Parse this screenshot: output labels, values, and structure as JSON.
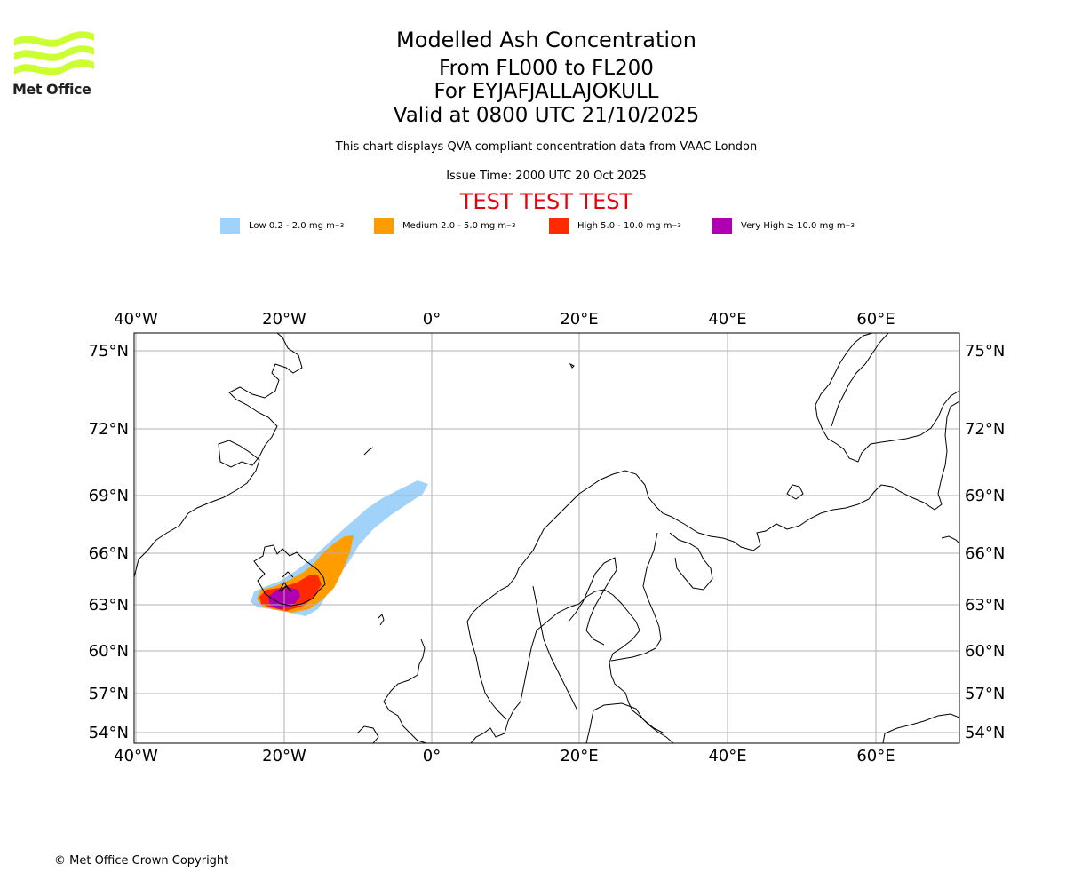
{
  "header": {
    "title": "Modelled Ash Concentration",
    "levels": "From FL000 to FL200",
    "volcano": "For EYJAFJALLAJOKULL",
    "valid": "Valid at 0800 UTC 21/10/2025",
    "description": "This chart displays QVA compliant concentration data from VAAC London",
    "issue": "Issue Time: 2000 UTC 20 Oct 2025",
    "test_banner": "TEST TEST TEST"
  },
  "logo": {
    "text": "Met Office",
    "color": "#ccff33"
  },
  "legend": [
    {
      "label": "Low 0.2 - 2.0 mg m",
      "sup": "−3",
      "color": "#a0d2fa"
    },
    {
      "label": "Medium 2.0 - 5.0 mg m",
      "sup": "−3",
      "color": "#ff9c00"
    },
    {
      "label": "High 5.0 - 10.0 mg m",
      "sup": "−3",
      "color": "#ff2a00"
    },
    {
      "label": "Very High ≥ 10.0 mg m",
      "sup": "−3",
      "color": "#ae00b0"
    }
  ],
  "map": {
    "lon_labels": [
      "40°W",
      "20°W",
      "0°",
      "20°E",
      "40°E",
      "60°E"
    ],
    "lat_labels": [
      "75°N",
      "72°N",
      "69°N",
      "66°N",
      "63°N",
      "60°N",
      "57°N",
      "54°N"
    ],
    "grid_color": "#b0b0b0"
  },
  "footer": {
    "copyright": "© Met Office Crown Copyright"
  }
}
